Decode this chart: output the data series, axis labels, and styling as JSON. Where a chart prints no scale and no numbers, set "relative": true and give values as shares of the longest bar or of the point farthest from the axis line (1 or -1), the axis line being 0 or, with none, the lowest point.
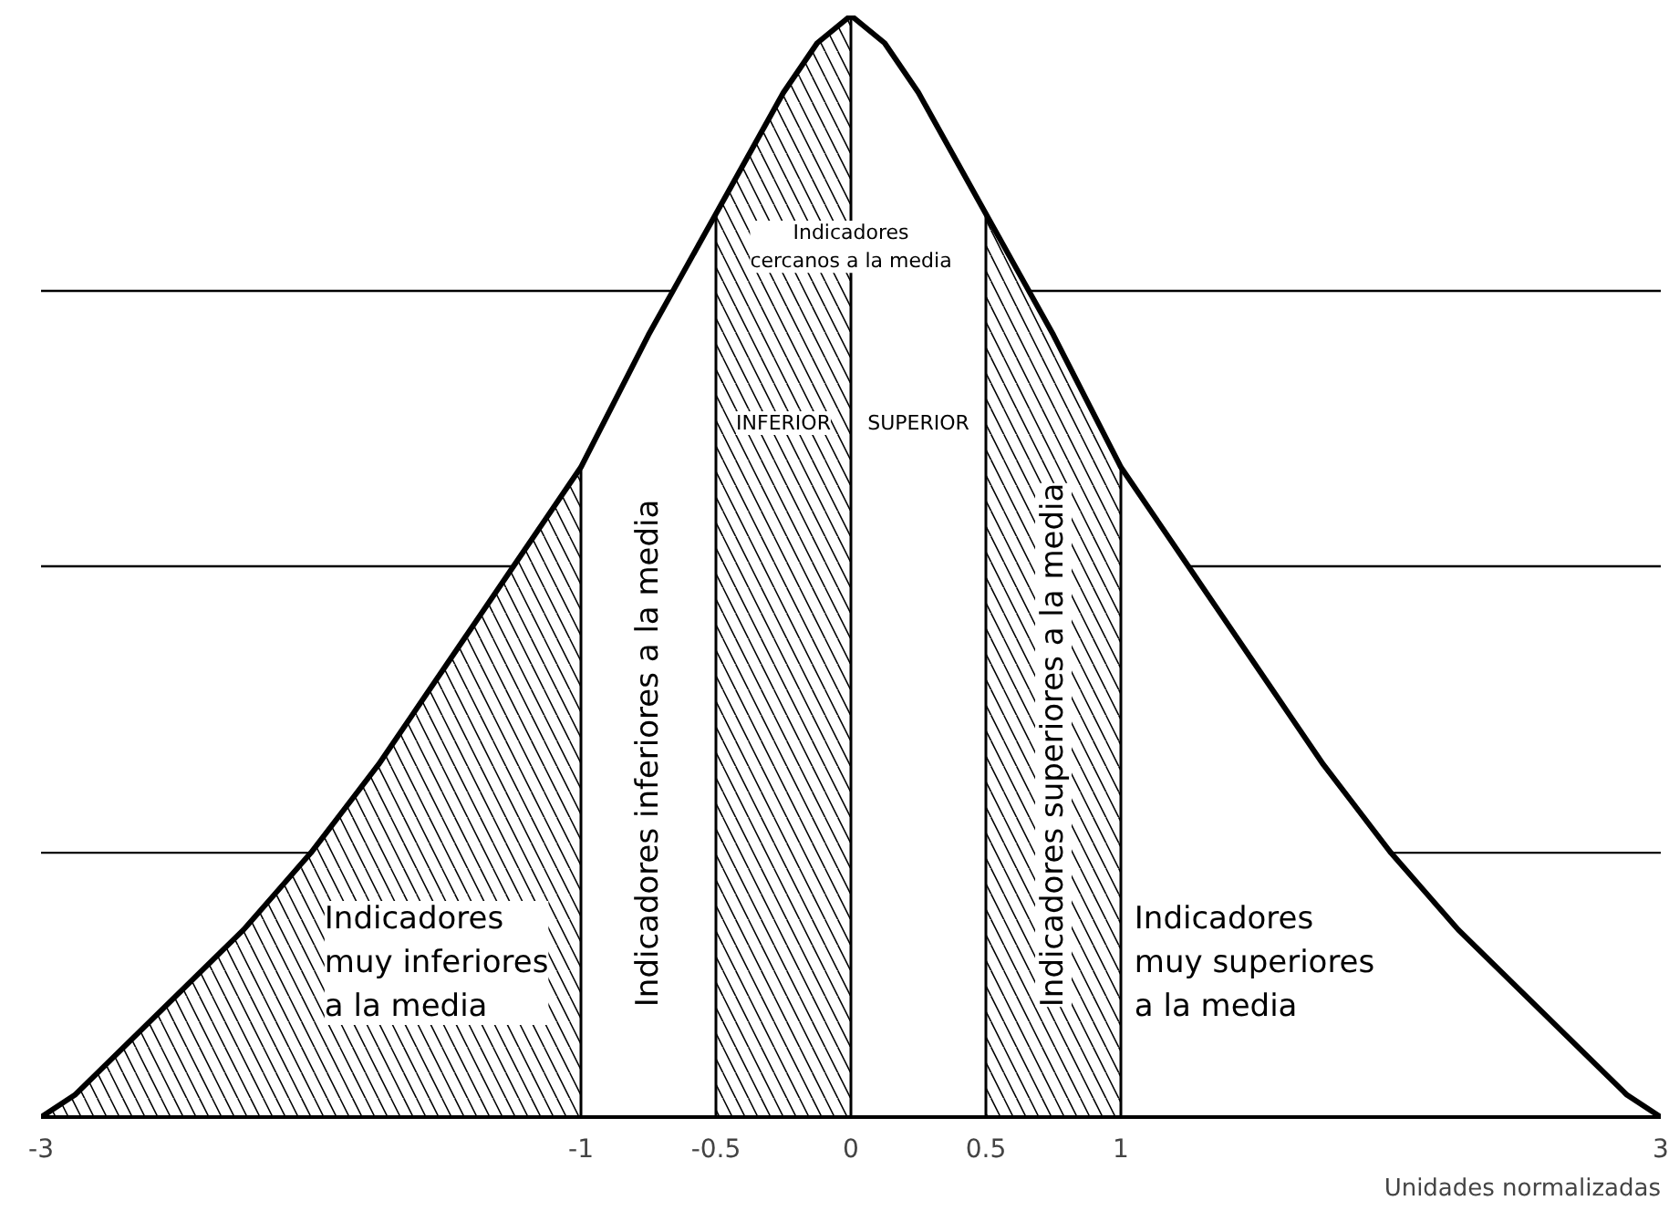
{
  "chart_data": {
    "type": "area",
    "relative": true,
    "xlabel": "Unidades normalizadas",
    "xlim": [
      -3,
      3
    ],
    "xticks": [
      -3,
      -1,
      -0.5,
      0,
      0.5,
      1,
      3
    ],
    "series": [
      {
        "color": "#000000",
        "x": [
          -3,
          -2.875,
          -2.75,
          -2.625,
          -2.5,
          -2.375,
          -2.25,
          -2.125,
          -2,
          -1.875,
          -1.75,
          -1.625,
          -1.5,
          -1.375,
          -1.25,
          -1.125,
          -1,
          -0.875,
          -0.75,
          -0.625,
          -0.5,
          -0.375,
          -0.25,
          -0.125,
          0,
          0.125,
          0.25,
          0.375,
          0.5,
          0.625,
          0.75,
          0.875,
          1,
          1.125,
          1.25,
          1.375,
          1.5,
          1.625,
          1.75,
          1.875,
          2,
          2.125,
          2.25,
          2.375,
          2.5,
          2.625,
          2.75,
          2.875,
          3
        ],
        "values": [
          0,
          0.02,
          0.05,
          0.08,
          0.11,
          0.14,
          0.17,
          0.205,
          0.24,
          0.28,
          0.32,
          0.365,
          0.41,
          0.455,
          0.5,
          0.545,
          0.59,
          0.65,
          0.71,
          0.765,
          0.82,
          0.875,
          0.93,
          0.975,
          1,
          0.975,
          0.93,
          0.875,
          0.82,
          0.765,
          0.71,
          0.65,
          0.59,
          0.545,
          0.5,
          0.455,
          0.41,
          0.365,
          0.32,
          0.28,
          0.24,
          0.205,
          0.17,
          0.14,
          0.11,
          0.08,
          0.05,
          0.02,
          0
        ]
      },
      {
        "color": "#000000",
        "x": [
          -3,
          -2.875,
          -2.75,
          -2.625,
          -2.5,
          -2.375,
          -2.25,
          -2.125,
          -2,
          -1.875,
          -1.75,
          -1.625,
          -1.5,
          -1.375,
          -1.25,
          -1.125,
          -1
        ],
        "values": [
          0,
          0.02,
          0.05,
          0.08,
          0.11,
          0.14,
          0.17,
          0.205,
          0.24,
          0.28,
          0.32,
          0.365,
          0.41,
          0.455,
          0.5,
          0.545,
          0.59
        ]
      },
      {
        "color": "#000000",
        "x": [
          -0.5,
          -0.375,
          -0.25,
          -0.125,
          0
        ],
        "values": [
          0.82,
          0.875,
          0.93,
          0.975,
          1
        ]
      },
      {
        "color": "#000000",
        "x": [
          0.5,
          0.625,
          0.75,
          0.875,
          1
        ],
        "values": [
          0.82,
          0.765,
          0.71,
          0.65,
          0.59
        ]
      }
    ],
    "ref_lines": [
      {
        "axis": "y",
        "value": 0.24
      },
      {
        "axis": "y",
        "value": 0.5
      },
      {
        "axis": "y",
        "value": 0.75
      }
    ],
    "annotations": [
      "Indicadores\nmuy inferiores\na la media",
      "Indicadores inferiores a la media",
      "Indicadores\ncercanos a la media",
      "INFERIOR",
      "SUPERIOR",
      "Indicadores superiores a la media",
      "Indicadores\nmuy superiores\na la media"
    ]
  }
}
